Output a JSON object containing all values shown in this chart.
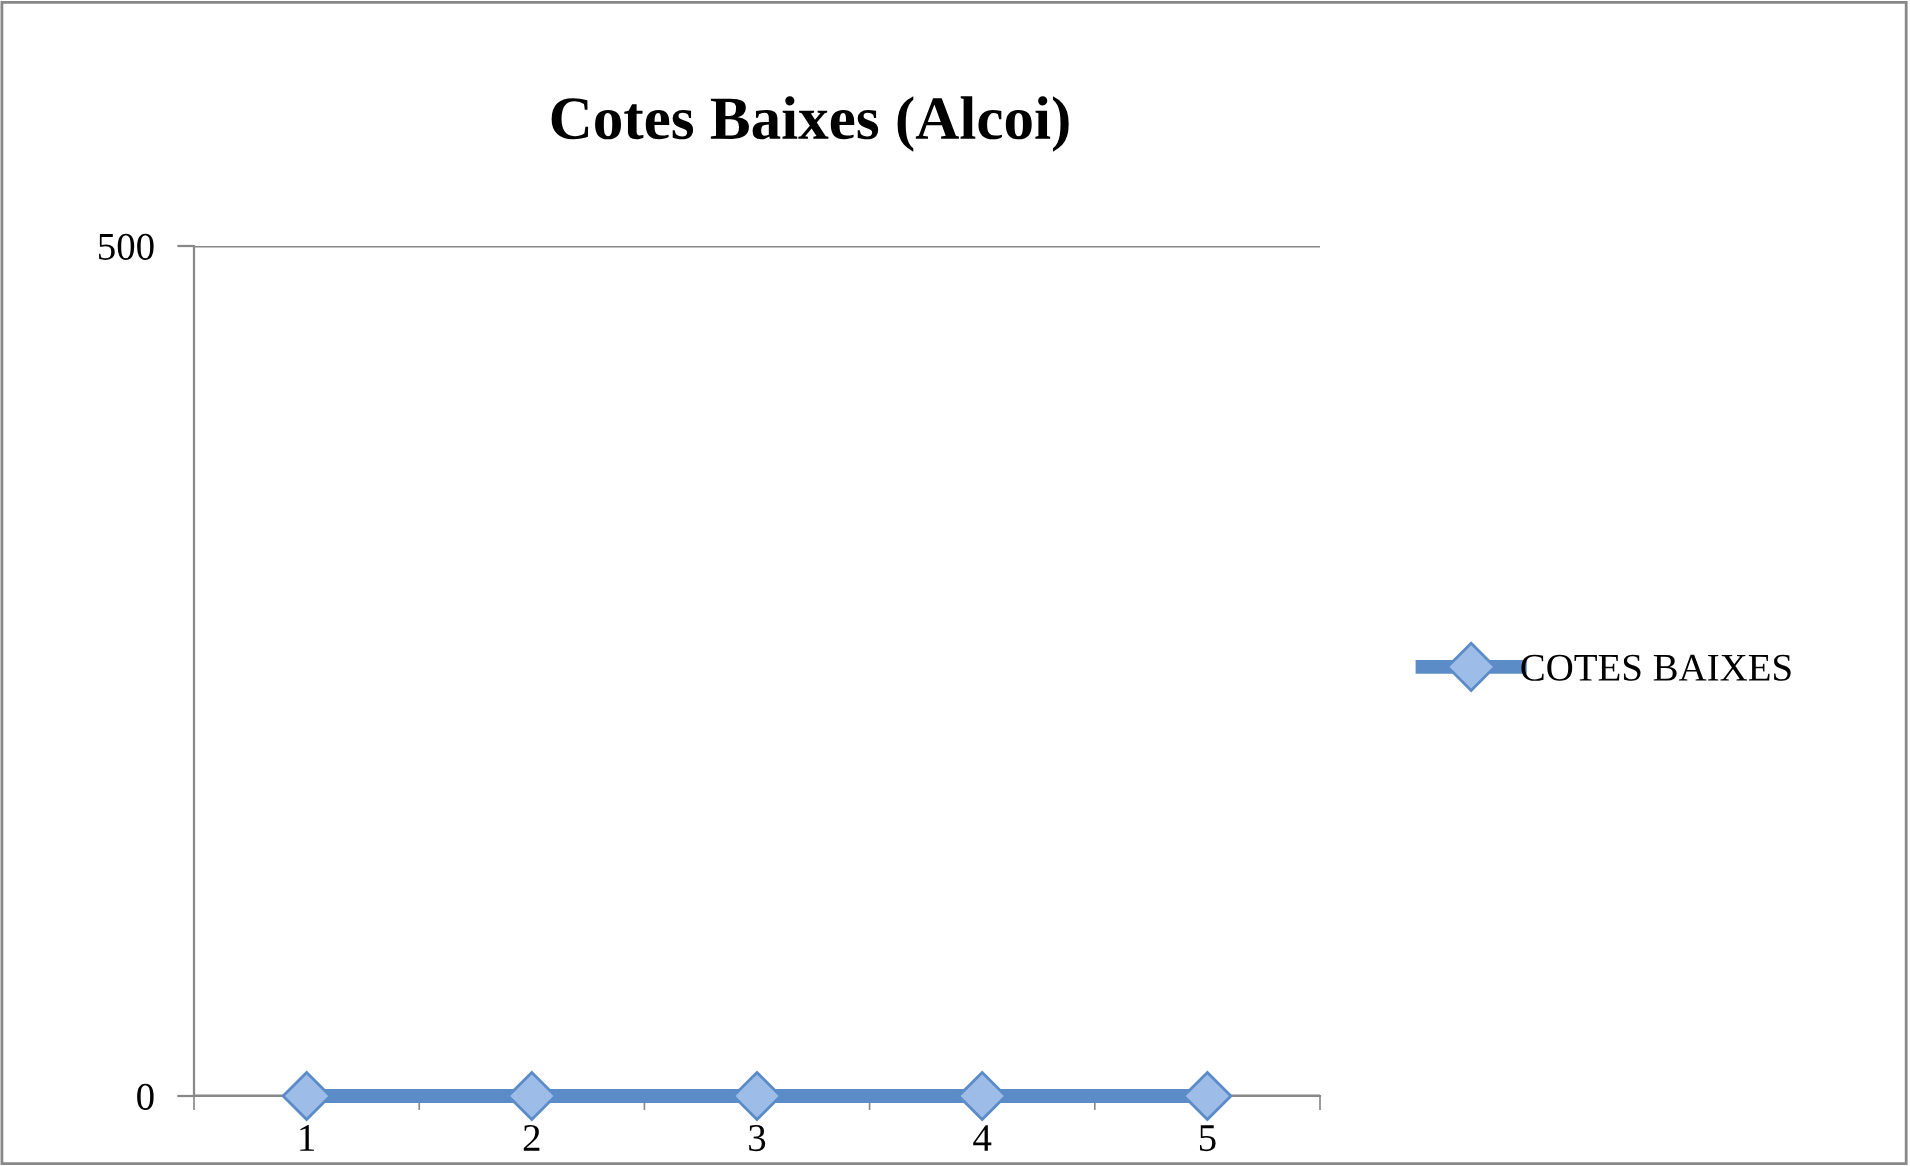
{
  "chart_data": {
    "type": "line",
    "title": "Cotes Baixes (Alcoi)",
    "categories": [
      "1",
      "2",
      "3",
      "4",
      "5"
    ],
    "series": [
      {
        "name": "COTES BAIXES",
        "color": "#5b8cc8",
        "values": [
          0,
          0,
          0,
          0,
          0
        ]
      }
    ],
    "ylim": [
      0,
      500
    ],
    "yticks": [
      0,
      500
    ],
    "grid": "y",
    "legend": "right",
    "marker": "diamond",
    "line_style": "solid"
  }
}
